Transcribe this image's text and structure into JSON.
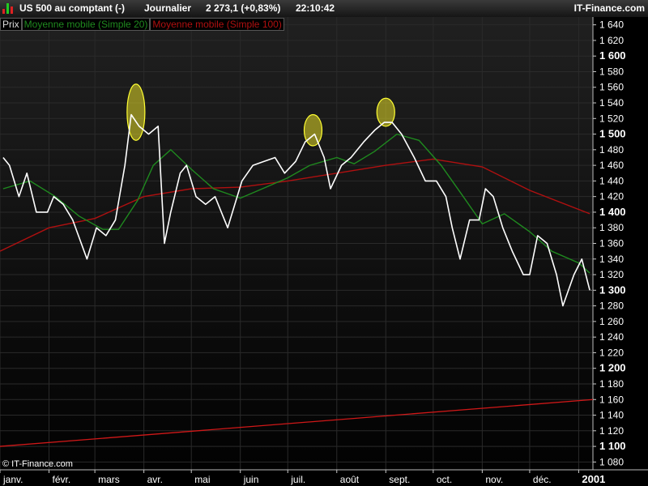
{
  "header": {
    "instrument": "US 500 au comptant (-)",
    "period": "Journalier",
    "quote": "2 273,1 (+0,83%)",
    "time": "22:10:42",
    "brand": "IT-Finance.com"
  },
  "legend": {
    "price_label": "Prix",
    "ma20_label": "Moyenne mobile (Simple 20)",
    "ma100_label": "Moyenne mobile (Simple 100)"
  },
  "copyright": "© IT-Finance.com",
  "colors": {
    "background": "#000000",
    "price": "#ffffff",
    "ma20": "#1f8a1f",
    "ma100": "#b01010",
    "trendline": "#d01818",
    "highlight": "#ffff33",
    "grid": "#2a2a2a",
    "axis_text": "#ffffff"
  },
  "chart_data": {
    "type": "line",
    "ylim": [
      1070,
      1650
    ],
    "y_ticks": [
      1080,
      1100,
      1120,
      1140,
      1160,
      1180,
      1200,
      1220,
      1240,
      1260,
      1280,
      1300,
      1320,
      1340,
      1360,
      1380,
      1400,
      1420,
      1440,
      1460,
      1480,
      1500,
      1520,
      1540,
      1560,
      1580,
      1600,
      1620,
      1640
    ],
    "y_tick_labels": [
      "1 080",
      "1 100",
      "1 120",
      "1 140",
      "1 160",
      "1 180",
      "1 200",
      "1 220",
      "1 240",
      "1 260",
      "1 280",
      "1 300",
      "1 320",
      "1 340",
      "1 360",
      "1 380",
      "1 400",
      "1 420",
      "1 440",
      "1 460",
      "1 480",
      "1 500",
      "1 520",
      "1 540",
      "1 560",
      "1 580",
      "1 600",
      "1 620",
      "1 640"
    ],
    "y_major_ticks": [
      1100,
      1200,
      1300,
      1400,
      1500,
      1600
    ],
    "x_range": [
      "2000-01-01",
      "2001-01-10"
    ],
    "x_tick_dates": [
      "2000-01-01",
      "2000-02-01",
      "2000-03-01",
      "2000-04-01",
      "2000-05-01",
      "2000-06-01",
      "2000-07-01",
      "2000-08-01",
      "2000-09-01",
      "2000-10-01",
      "2000-11-01",
      "2000-12-01",
      "2001-01-01"
    ],
    "x_tick_labels": [
      "janv.",
      "févr.",
      "mars",
      "avr.",
      "mai",
      "juin",
      "juil.",
      "août",
      "sept.",
      "oct.",
      "nov.",
      "déc.",
      "2001"
    ],
    "price_series": {
      "name": "Prix",
      "points": [
        [
          "2000-01-03",
          1470
        ],
        [
          "2000-01-07",
          1460
        ],
        [
          "2000-01-13",
          1420
        ],
        [
          "2000-01-18",
          1450
        ],
        [
          "2000-01-24",
          1400
        ],
        [
          "2000-01-31",
          1400
        ],
        [
          "2000-02-04",
          1420
        ],
        [
          "2000-02-10",
          1410
        ],
        [
          "2000-02-16",
          1390
        ],
        [
          "2000-02-25",
          1340
        ],
        [
          "2000-03-02",
          1380
        ],
        [
          "2000-03-08",
          1370
        ],
        [
          "2000-03-14",
          1390
        ],
        [
          "2000-03-20",
          1460
        ],
        [
          "2000-03-24",
          1525
        ],
        [
          "2000-03-29",
          1510
        ],
        [
          "2000-04-04",
          1500
        ],
        [
          "2000-04-10",
          1510
        ],
        [
          "2000-04-14",
          1360
        ],
        [
          "2000-04-18",
          1400
        ],
        [
          "2000-04-24",
          1450
        ],
        [
          "2000-04-28",
          1460
        ],
        [
          "2000-05-04",
          1420
        ],
        [
          "2000-05-10",
          1410
        ],
        [
          "2000-05-16",
          1420
        ],
        [
          "2000-05-24",
          1380
        ],
        [
          "2000-06-02",
          1440
        ],
        [
          "2000-06-09",
          1460
        ],
        [
          "2000-06-16",
          1465
        ],
        [
          "2000-06-23",
          1470
        ],
        [
          "2000-06-29",
          1450
        ],
        [
          "2000-07-06",
          1465
        ],
        [
          "2000-07-12",
          1490
        ],
        [
          "2000-07-18",
          1500
        ],
        [
          "2000-07-24",
          1470
        ],
        [
          "2000-07-28",
          1430
        ],
        [
          "2000-08-04",
          1460
        ],
        [
          "2000-08-10",
          1470
        ],
        [
          "2000-08-18",
          1490
        ],
        [
          "2000-08-25",
          1505
        ],
        [
          "2000-08-31",
          1515
        ],
        [
          "2000-09-05",
          1515
        ],
        [
          "2000-09-11",
          1500
        ],
        [
          "2000-09-19",
          1470
        ],
        [
          "2000-09-26",
          1440
        ],
        [
          "2000-10-03",
          1440
        ],
        [
          "2000-10-09",
          1420
        ],
        [
          "2000-10-13",
          1380
        ],
        [
          "2000-10-18",
          1340
        ],
        [
          "2000-10-24",
          1390
        ],
        [
          "2000-10-30",
          1390
        ],
        [
          "2000-11-03",
          1430
        ],
        [
          "2000-11-08",
          1420
        ],
        [
          "2000-11-14",
          1380
        ],
        [
          "2000-11-20",
          1350
        ],
        [
          "2000-11-27",
          1320
        ],
        [
          "2000-12-01",
          1320
        ],
        [
          "2000-12-06",
          1370
        ],
        [
          "2000-12-12",
          1360
        ],
        [
          "2000-12-18",
          1320
        ],
        [
          "2000-12-22",
          1280
        ],
        [
          "2000-12-29",
          1320
        ],
        [
          "2001-01-03",
          1340
        ],
        [
          "2001-01-08",
          1300
        ]
      ]
    },
    "ma20_series": {
      "name": "Moyenne mobile (Simple 20)",
      "points": [
        [
          "2000-01-03",
          1430
        ],
        [
          "2000-01-20",
          1440
        ],
        [
          "2000-02-05",
          1420
        ],
        [
          "2000-02-20",
          1395
        ],
        [
          "2000-03-06",
          1378
        ],
        [
          "2000-03-16",
          1378
        ],
        [
          "2000-03-28",
          1415
        ],
        [
          "2000-04-07",
          1460
        ],
        [
          "2000-04-18",
          1480
        ],
        [
          "2000-05-01",
          1455
        ],
        [
          "2000-05-15",
          1430
        ],
        [
          "2000-06-01",
          1418
        ],
        [
          "2000-06-15",
          1430
        ],
        [
          "2000-07-01",
          1444
        ],
        [
          "2000-07-15",
          1460
        ],
        [
          "2000-08-01",
          1470
        ],
        [
          "2000-08-12",
          1462
        ],
        [
          "2000-08-25",
          1478
        ],
        [
          "2000-09-08",
          1500
        ],
        [
          "2000-09-22",
          1492
        ],
        [
          "2000-10-06",
          1460
        ],
        [
          "2000-10-20",
          1420
        ],
        [
          "2000-11-01",
          1385
        ],
        [
          "2000-11-15",
          1398
        ],
        [
          "2000-12-01",
          1375
        ],
        [
          "2000-12-15",
          1350
        ],
        [
          "2001-01-01",
          1335
        ],
        [
          "2001-01-08",
          1322
        ]
      ]
    },
    "ma100_series": {
      "name": "Moyenne mobile (Simple 100)",
      "points": [
        [
          "2000-01-01",
          1350
        ],
        [
          "2000-02-01",
          1380
        ],
        [
          "2000-03-01",
          1392
        ],
        [
          "2000-04-01",
          1420
        ],
        [
          "2000-05-01",
          1430
        ],
        [
          "2000-06-01",
          1432
        ],
        [
          "2000-07-01",
          1440
        ],
        [
          "2000-08-01",
          1450
        ],
        [
          "2000-09-01",
          1460
        ],
        [
          "2000-10-01",
          1468
        ],
        [
          "2000-11-01",
          1458
        ],
        [
          "2000-12-01",
          1428
        ],
        [
          "2001-01-08",
          1398
        ]
      ]
    },
    "trendline": {
      "start": [
        "2000-01-01",
        1100
      ],
      "end": [
        "2001-01-10",
        1160
      ]
    },
    "highlights": [
      {
        "center": [
          "2000-03-27",
          1528
        ],
        "height": 72
      },
      {
        "center": [
          "2000-07-17",
          1505
        ],
        "height": 40
      },
      {
        "center": [
          "2000-09-01",
          1528
        ],
        "height": 36
      }
    ]
  }
}
